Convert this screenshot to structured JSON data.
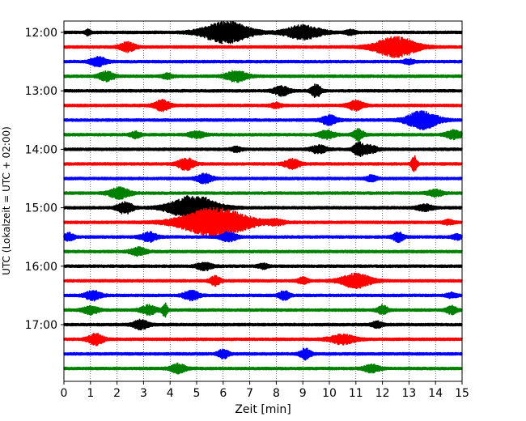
{
  "chart_data": {
    "type": "line",
    "title": "",
    "xlabel": "Zeit  [min]",
    "ylabel": "UTC (Lokalzeit = UTC + 02:00)",
    "xlim": [
      0,
      15
    ],
    "x_ticks": [
      "0",
      "1",
      "2",
      "3",
      "4",
      "5",
      "6",
      "7",
      "8",
      "9",
      "10",
      "11",
      "12",
      "13",
      "14",
      "15"
    ],
    "y_tick_labels": [
      "12:00",
      "13:00",
      "14:00",
      "15:00",
      "16:00",
      "17:00"
    ],
    "trace_interval_minutes": 15,
    "first_trace": "12:00",
    "trace_colors": [
      "#000000",
      "#ff0000",
      "#0000ff",
      "#008000"
    ],
    "grid": "vertical-dotted",
    "series": [
      {
        "label": "12:00",
        "color": "#000000",
        "events": [
          [
            0.9,
            0.35,
            0.1
          ],
          [
            6.1,
            1.4,
            0.9
          ],
          [
            9.0,
            0.9,
            0.7
          ],
          [
            10.8,
            0.3,
            0.2
          ]
        ]
      },
      {
        "label": "12:15",
        "color": "#ff0000",
        "events": [
          [
            2.4,
            0.6,
            0.3
          ],
          [
            12.5,
            1.3,
            0.8
          ]
        ]
      },
      {
        "label": "12:30",
        "color": "#0000ff",
        "events": [
          [
            1.3,
            0.6,
            0.3
          ],
          [
            13.0,
            0.3,
            0.2
          ]
        ]
      },
      {
        "label": "12:45",
        "color": "#008000",
        "events": [
          [
            1.6,
            0.6,
            0.3
          ],
          [
            3.9,
            0.3,
            0.2
          ],
          [
            6.5,
            0.7,
            0.4
          ]
        ]
      },
      {
        "label": "13:00",
        "color": "#000000",
        "events": [
          [
            8.2,
            0.6,
            0.3
          ],
          [
            9.5,
            0.8,
            0.2
          ]
        ]
      },
      {
        "label": "13:15",
        "color": "#ff0000",
        "events": [
          [
            3.7,
            0.7,
            0.3
          ],
          [
            8.0,
            0.3,
            0.2
          ],
          [
            11.0,
            0.6,
            0.3
          ]
        ]
      },
      {
        "label": "13:30",
        "color": "#0000ff",
        "events": [
          [
            10.0,
            0.6,
            0.3
          ],
          [
            13.5,
            1.2,
            0.6
          ]
        ]
      },
      {
        "label": "13:45",
        "color": "#008000",
        "events": [
          [
            2.7,
            0.4,
            0.2
          ],
          [
            5.0,
            0.4,
            0.3
          ],
          [
            9.9,
            0.5,
            0.3
          ],
          [
            11.1,
            0.7,
            0.2
          ],
          [
            14.7,
            0.6,
            0.3
          ]
        ]
      },
      {
        "label": "14:00",
        "color": "#000000",
        "events": [
          [
            6.5,
            0.3,
            0.2
          ],
          [
            9.6,
            0.5,
            0.3
          ],
          [
            11.1,
            0.8,
            0.2
          ],
          [
            11.5,
            0.5,
            0.3
          ]
        ]
      },
      {
        "label": "14:15",
        "color": "#ff0000",
        "events": [
          [
            4.6,
            0.8,
            0.3
          ],
          [
            8.6,
            0.6,
            0.3
          ],
          [
            13.2,
            1.1,
            0.1
          ]
        ]
      },
      {
        "label": "14:30",
        "color": "#0000ff",
        "events": [
          [
            5.3,
            0.6,
            0.3
          ],
          [
            11.6,
            0.4,
            0.2
          ]
        ]
      },
      {
        "label": "14:45",
        "color": "#008000",
        "events": [
          [
            2.1,
            0.7,
            0.4
          ],
          [
            14.0,
            0.4,
            0.3
          ]
        ]
      },
      {
        "label": "15:00",
        "color": "#000000",
        "events": [
          [
            2.3,
            0.8,
            0.3
          ],
          [
            4.9,
            1.6,
            0.9
          ],
          [
            13.6,
            0.4,
            0.3
          ]
        ]
      },
      {
        "label": "15:15",
        "color": "#ff0000",
        "events": [
          [
            5.7,
            1.9,
            1.3
          ],
          [
            8.0,
            0.3,
            0.3
          ],
          [
            14.5,
            0.3,
            0.2
          ]
        ]
      },
      {
        "label": "15:30",
        "color": "#0000ff",
        "events": [
          [
            0.2,
            0.5,
            0.2
          ],
          [
            3.2,
            0.6,
            0.3
          ],
          [
            6.2,
            0.6,
            0.3
          ],
          [
            12.6,
            0.6,
            0.2
          ],
          [
            14.8,
            0.3,
            0.2
          ]
        ]
      },
      {
        "label": "15:45",
        "color": "#008000",
        "events": [
          [
            2.8,
            0.5,
            0.3
          ]
        ]
      },
      {
        "label": "16:00",
        "color": "#000000",
        "events": [
          [
            5.3,
            0.5,
            0.3
          ],
          [
            7.5,
            0.3,
            0.2
          ]
        ]
      },
      {
        "label": "16:15",
        "color": "#ff0000",
        "events": [
          [
            5.7,
            0.6,
            0.2
          ],
          [
            9.0,
            0.4,
            0.2
          ],
          [
            11.0,
            0.9,
            0.6
          ]
        ]
      },
      {
        "label": "16:30",
        "color": "#0000ff",
        "events": [
          [
            1.1,
            0.6,
            0.3
          ],
          [
            4.8,
            0.6,
            0.3
          ],
          [
            8.3,
            0.6,
            0.2
          ],
          [
            14.6,
            0.3,
            0.2
          ]
        ]
      },
      {
        "label": "16:45",
        "color": "#008000",
        "events": [
          [
            1.0,
            0.5,
            0.3
          ],
          [
            3.2,
            0.6,
            0.3
          ],
          [
            3.8,
            0.9,
            0.1
          ],
          [
            12.0,
            0.6,
            0.2
          ],
          [
            14.6,
            0.5,
            0.2
          ]
        ]
      },
      {
        "label": "17:00",
        "color": "#000000",
        "events": [
          [
            2.9,
            0.6,
            0.3
          ],
          [
            11.8,
            0.4,
            0.2
          ]
        ]
      },
      {
        "label": "17:15",
        "color": "#ff0000",
        "events": [
          [
            1.2,
            0.7,
            0.3
          ],
          [
            10.5,
            0.6,
            0.5
          ]
        ]
      },
      {
        "label": "17:30",
        "color": "#0000ff",
        "events": [
          [
            6.0,
            0.6,
            0.2
          ],
          [
            9.1,
            0.7,
            0.2
          ]
        ]
      },
      {
        "label": "17:45",
        "color": "#008000",
        "events": [
          [
            4.3,
            0.6,
            0.3
          ],
          [
            11.6,
            0.5,
            0.3
          ]
        ]
      }
    ]
  }
}
